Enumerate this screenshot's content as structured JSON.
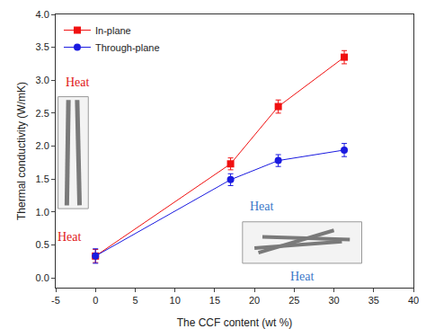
{
  "chart_data": {
    "type": "line",
    "x_label": "The CCF content (wt %)",
    "y_label": "Thermal conductivity (W/mK)",
    "xlim": [
      -5,
      40
    ],
    "xticks": [
      -5,
      0,
      5,
      10,
      15,
      20,
      25,
      30,
      35,
      40
    ],
    "ylim": [
      -0.15,
      4.0
    ],
    "yticks": [
      {
        "value": 0,
        "label": "0.0"
      },
      0.5,
      {
        "value": 1,
        "label": "1.0"
      },
      1.5,
      {
        "value": 2,
        "label": "2.0"
      },
      2.5,
      {
        "value": 3,
        "label": "3.0"
      },
      3.5,
      {
        "value": 4,
        "label": "4.0"
      }
    ],
    "grid": false,
    "legend": "top-left",
    "series": [
      {
        "name": "In-plane",
        "color": "#f01010",
        "marker": "square",
        "x": [
          0,
          17,
          23,
          31.3
        ],
        "values": [
          0.33,
          1.73,
          2.6,
          3.35
        ],
        "errors": [
          0.1,
          0.09,
          0.1,
          0.1
        ]
      },
      {
        "name": "Through-plane",
        "color": "#1a1ae0",
        "marker": "circle",
        "x": [
          0,
          17,
          23,
          31.3
        ],
        "values": [
          0.33,
          1.49,
          1.78,
          1.94
        ],
        "errors": [
          0.11,
          0.09,
          0.09,
          0.1
        ]
      }
    ],
    "annotations": [
      {
        "text": "Heat",
        "x": -2.2,
        "y": 2.97,
        "color": "#e02020"
      },
      {
        "text": "Heat",
        "x": -3.3,
        "y": 0.62,
        "color": "#e02020"
      },
      {
        "text": "Heat",
        "x": 21,
        "y": 1.08,
        "color": "#3a78c8"
      },
      {
        "text": "Heat",
        "x": 26,
        "y": 0.02,
        "color": "#3a78c8"
      }
    ]
  }
}
